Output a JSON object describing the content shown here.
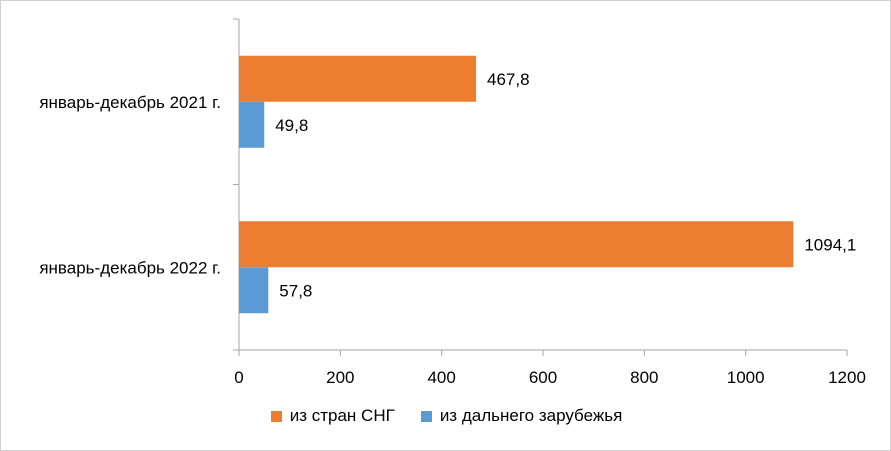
{
  "chart_data": {
    "type": "bar",
    "orientation": "horizontal",
    "categories": [
      "январь-декабрь 2021 г.",
      "январь-декабрь 2022 г."
    ],
    "series": [
      {
        "name": "из стран СНГ",
        "values": [
          467.8,
          1094.1
        ],
        "labels": [
          "467,8",
          "1094,1"
        ],
        "color": "#ED7D31"
      },
      {
        "name": "из дальнего зарубежья",
        "values": [
          49.8,
          57.8
        ],
        "labels": [
          "49,8",
          "57,8"
        ],
        "color": "#5B9BD5"
      }
    ],
    "xlim": [
      0,
      1200
    ],
    "xticks": [
      "0",
      "200",
      "400",
      "600",
      "800",
      "1000",
      "1200"
    ],
    "grid": false,
    "legend_position": "bottom"
  }
}
